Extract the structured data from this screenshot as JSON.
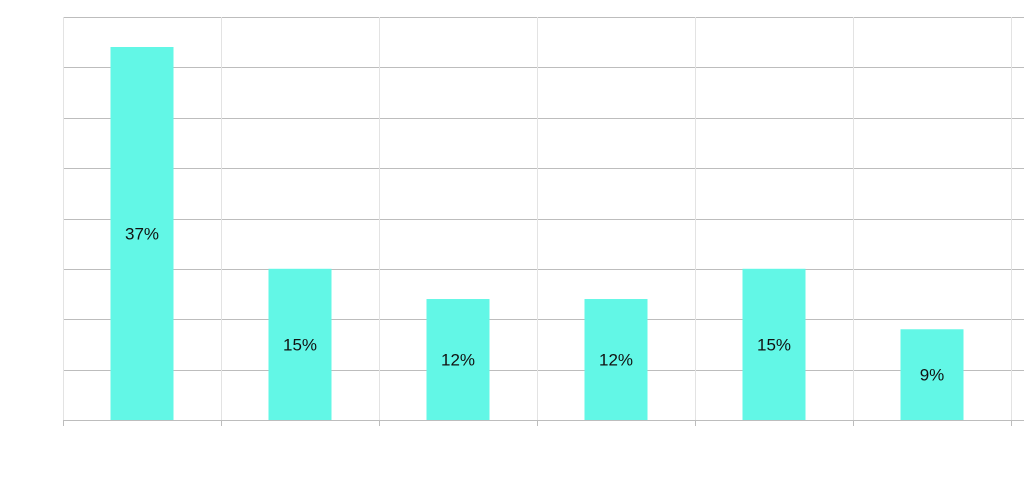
{
  "chart_data": {
    "type": "bar",
    "categories": [
      "",
      "",
      "",
      "",
      "",
      ""
    ],
    "values": [
      37,
      15,
      12,
      12,
      15,
      9
    ],
    "data_labels": [
      "37%",
      "15%",
      "12%",
      "12%",
      "15%",
      "9%"
    ],
    "title": "",
    "xlabel": "",
    "ylabel": "",
    "ylim": [
      0,
      40
    ],
    "grid": true,
    "legend": "none",
    "bar_color": "#62f7e6"
  }
}
